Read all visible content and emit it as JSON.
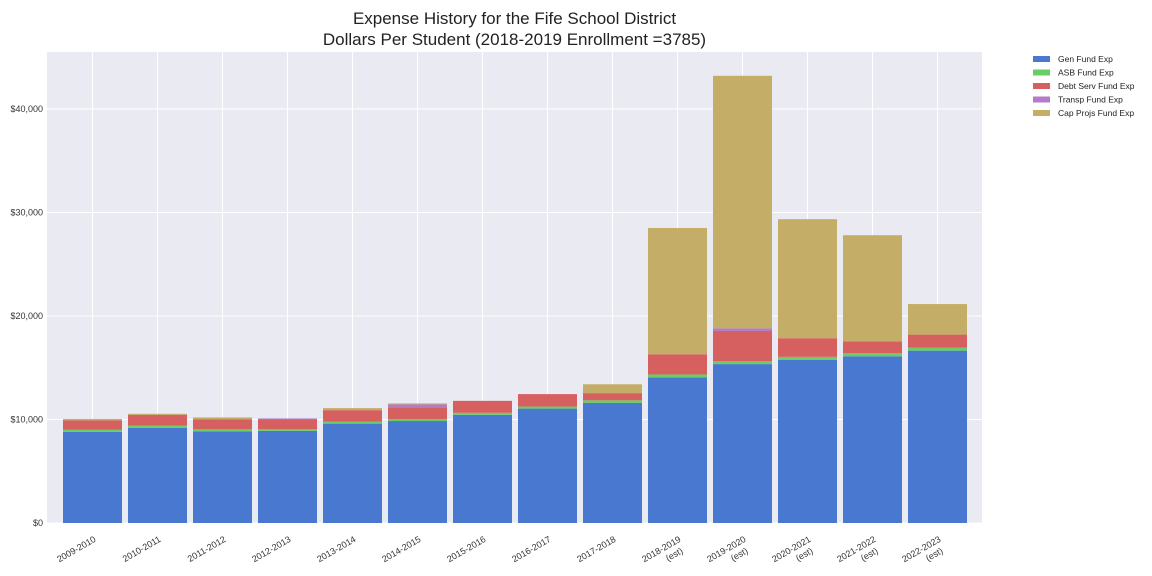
{
  "chart_data": {
    "type": "bar",
    "stacked": true,
    "title": [
      "Expense History for the Fife School District",
      "Dollars Per Student (2018-2019 Enrollment =3785)"
    ],
    "xlabel": "",
    "ylabel": "",
    "ylim": [
      0,
      45500
    ],
    "y_ticks": [
      {
        "value": 0,
        "label": "$0"
      },
      {
        "value": 10000,
        "label": "$10,000"
      },
      {
        "value": 20000,
        "label": "$20,000"
      },
      {
        "value": 30000,
        "label": "$30,000"
      },
      {
        "value": 40000,
        "label": "$40,000"
      }
    ],
    "categories": [
      [
        "2009-2010"
      ],
      [
        "2010-2011"
      ],
      [
        "2011-2012"
      ],
      [
        "2012-2013"
      ],
      [
        "2013-2014"
      ],
      [
        "2014-2015"
      ],
      [
        "2015-2016"
      ],
      [
        "2016-2017"
      ],
      [
        "2017-2018"
      ],
      [
        "2018-2019",
        "(est)"
      ],
      [
        "2019-2020",
        "(est)"
      ],
      [
        "2020-2021",
        "(est)"
      ],
      [
        "2021-2022",
        "(est)"
      ],
      [
        "2022-2023",
        "(est)"
      ]
    ],
    "grid": true,
    "legend_position": "outside-top-right",
    "series": [
      {
        "name": "Gen Fund Exp",
        "color": "#4878cf",
        "values": [
          8800,
          9200,
          8850,
          8900,
          9600,
          9850,
          10450,
          11050,
          11600,
          14050,
          15350,
          15750,
          16100,
          16650
        ]
      },
      {
        "name": "ASB Fund Exp",
        "color": "#6acc65",
        "values": [
          200,
          200,
          200,
          150,
          200,
          200,
          200,
          200,
          250,
          300,
          300,
          300,
          300,
          300
        ]
      },
      {
        "name": "Debt Serv Fund Exp",
        "color": "#d65f5f",
        "values": [
          900,
          1050,
          950,
          950,
          1100,
          1100,
          1150,
          1200,
          700,
          1950,
          2900,
          1800,
          1150,
          1250
        ]
      },
      {
        "name": "Transp Fund Exp",
        "color": "#b47cc7",
        "values": [
          0,
          0,
          0,
          100,
          0,
          300,
          0,
          0,
          0,
          0,
          250,
          0,
          0,
          0
        ]
      },
      {
        "name": "Cap Projs Fund Exp",
        "color": "#c4ad66",
        "values": [
          150,
          100,
          200,
          0,
          200,
          100,
          0,
          0,
          850,
          12200,
          24400,
          11500,
          10250,
          2950
        ]
      }
    ]
  }
}
